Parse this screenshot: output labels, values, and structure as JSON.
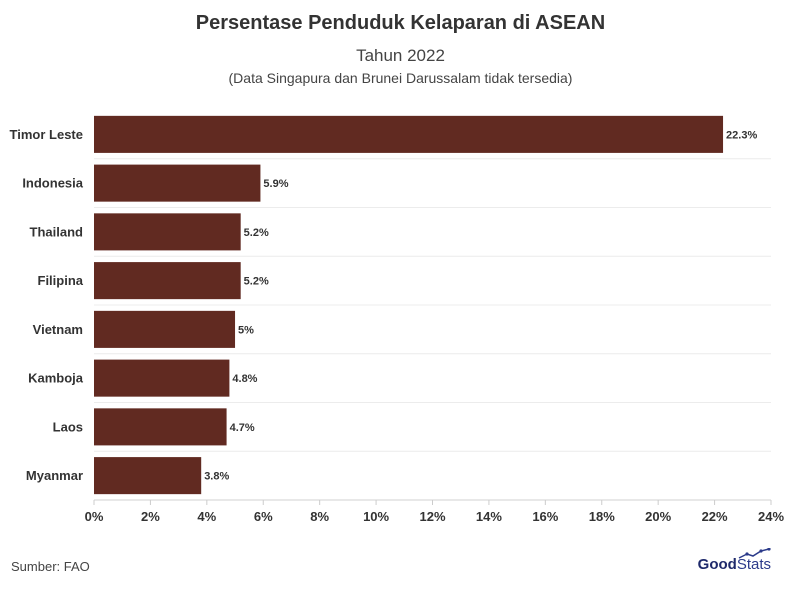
{
  "chart_data": {
    "type": "bar",
    "orientation": "horizontal",
    "title": "Persentase Penduduk Kelaparan di ASEAN",
    "subtitle": "Tahun 2022",
    "note": "(Data Singapura dan Brunei Darussalam tidak tersedia)",
    "categories": [
      "Timor Leste",
      "Indonesia",
      "Thailand",
      "Filipina",
      "Vietnam",
      "Kamboja",
      "Laos",
      "Myanmar"
    ],
    "values": [
      22.3,
      5.9,
      5.2,
      5.2,
      5.0,
      4.8,
      4.7,
      3.8
    ],
    "value_labels": [
      "22.3%",
      "5.9%",
      "5.2%",
      "5.2%",
      "5%",
      "4.8%",
      "4.7%",
      "3.8%"
    ],
    "xlim": [
      0,
      24
    ],
    "xticks": [
      0,
      2,
      4,
      6,
      8,
      10,
      12,
      14,
      16,
      18,
      20,
      22,
      24
    ],
    "xtick_labels": [
      "0%",
      "2%",
      "4%",
      "6%",
      "8%",
      "10%",
      "12%",
      "14%",
      "16%",
      "18%",
      "20%",
      "22%",
      "24%"
    ],
    "bar_color": "#612a21",
    "grid": true
  },
  "footer": {
    "source": "Sumber: FAO",
    "brand_bold": "Good",
    "brand_light": "Stats"
  }
}
